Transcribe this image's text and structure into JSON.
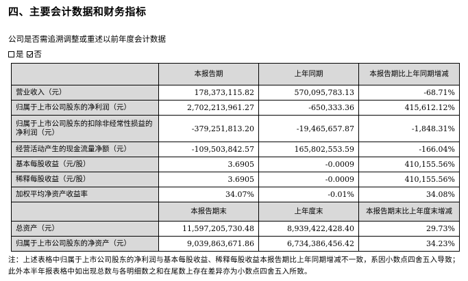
{
  "section_title": "四、主要会计数据和财务指标",
  "restatement": {
    "question": "公司是否需追溯调整或重述以前年度会计数据",
    "option_yes": "是",
    "option_no": "否",
    "selected": "否"
  },
  "table1": {
    "headers": [
      "",
      "本报告期",
      "上年同期",
      "本报告期比上年同期增减"
    ],
    "rows": [
      [
        "营业收入（元）",
        "178,373,115.82",
        "570,095,783.13",
        "-68.71%"
      ],
      [
        "归属于上市公司股东的净利润（元）",
        "2,702,213,961.27",
        "-650,333.36",
        "415,612.12%"
      ],
      [
        "归属于上市公司股东的扣除非经常性损益的净利润（元）",
        "-379,251,813.20",
        "-19,465,657.87",
        "-1,848.31%"
      ],
      [
        "经营活动产生的现金流量净额（元）",
        "-109,503,842.57",
        "165,802,553.59",
        "-166.04%"
      ],
      [
        "基本每股收益（元/股）",
        "3.6905",
        "-0.0009",
        "410,155.56%"
      ],
      [
        "稀释每股收益（元/股）",
        "3.6905",
        "-0.0009",
        "410,155.56%"
      ],
      [
        "加权平均净资产收益率",
        "34.07%",
        "-0.01%",
        "34.08%"
      ]
    ]
  },
  "table2": {
    "headers": [
      "",
      "本报告期末",
      "上年度末",
      "本报告期末比上年度末增减"
    ],
    "rows": [
      [
        "总资产（元）",
        "11,597,205,730.48",
        "8,939,422,428.40",
        "29.73%"
      ],
      [
        "归属于上市公司股东的净资产（元）",
        "9,039,863,671.86",
        "6,734,386,456.42",
        "34.23%"
      ]
    ]
  },
  "note": "注：上述表格中归属于上市公司股东的净利润与基本每股收益、稀释每股收益本报告期比上年同期增减不一致，系因小数点四舍五入导致；此外本半年报表格中如出现总数与各明细数之和在尾数上存在差异亦为小数点四舍五入所致。"
}
